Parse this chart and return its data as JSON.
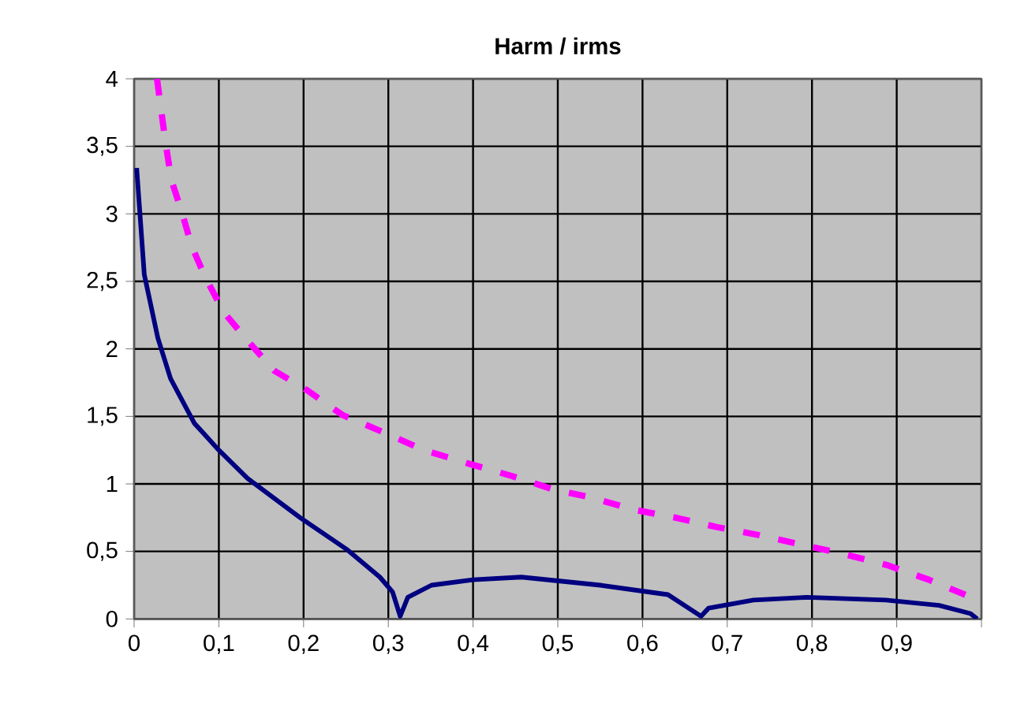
{
  "chart_data": {
    "type": "line",
    "title": "Harm / irms",
    "xlim": [
      0,
      1
    ],
    "ylim": [
      0,
      4
    ],
    "xticks": [
      0,
      {
        "value": 0.1,
        "label": "0,1"
      },
      {
        "value": 0.2,
        "label": "0,2"
      },
      {
        "value": 0.3,
        "label": "0,3"
      },
      {
        "value": 0.4,
        "label": "0,4"
      },
      {
        "value": 0.5,
        "label": "0,5"
      },
      {
        "value": 0.6,
        "label": "0,6"
      },
      {
        "value": 0.7,
        "label": "0,7"
      },
      {
        "value": 0.8,
        "label": "0,8"
      },
      {
        "value": 0.9,
        "label": "0,9"
      },
      {
        "value": 1,
        "label": null
      }
    ],
    "yticks": [
      0,
      {
        "value": 0.5,
        "label": "0,5"
      },
      1,
      {
        "value": 1.5,
        "label": "1,5"
      },
      2,
      {
        "value": 2.5,
        "label": "2,5"
      },
      3,
      {
        "value": 3.5,
        "label": "3,5"
      },
      4
    ],
    "grid": true,
    "series": [
      {
        "color": "#000080",
        "line_style": "solid",
        "x": [
          0.003,
          0.012,
          0.028,
          0.043,
          0.071,
          0.1,
          0.134,
          0.196,
          0.252,
          0.29,
          0.305,
          0.314,
          0.323,
          0.351,
          0.4,
          0.457,
          0.55,
          0.63,
          0.669,
          0.678,
          0.731,
          0.794,
          0.887,
          0.95,
          0.987,
          0.995
        ],
        "values": [
          3.34,
          2.55,
          2.08,
          1.78,
          1.45,
          1.25,
          1.04,
          0.75,
          0.51,
          0.31,
          0.2,
          0.02,
          0.16,
          0.25,
          0.29,
          0.31,
          0.25,
          0.18,
          0.02,
          0.08,
          0.14,
          0.16,
          0.14,
          0.1,
          0.04,
          0.0
        ]
      },
      {
        "color": "#ff00ff",
        "line_style": "dashed",
        "x": [
          0.027,
          0.037,
          0.044,
          0.056,
          0.068,
          0.084,
          0.106,
          0.134,
          0.165,
          0.205,
          0.246,
          0.299,
          0.342,
          0.395,
          0.445,
          0.494,
          0.539,
          0.589,
          0.639,
          0.688,
          0.738,
          0.788,
          0.838,
          0.888,
          0.938,
          0.988
        ],
        "values": [
          4.0,
          3.53,
          3.25,
          3.02,
          2.76,
          2.53,
          2.27,
          2.06,
          1.84,
          1.69,
          1.51,
          1.37,
          1.25,
          1.15,
          1.06,
          0.96,
          0.9,
          0.81,
          0.75,
          0.68,
          0.62,
          0.55,
          0.48,
          0.4,
          0.29,
          0.16
        ]
      }
    ]
  }
}
